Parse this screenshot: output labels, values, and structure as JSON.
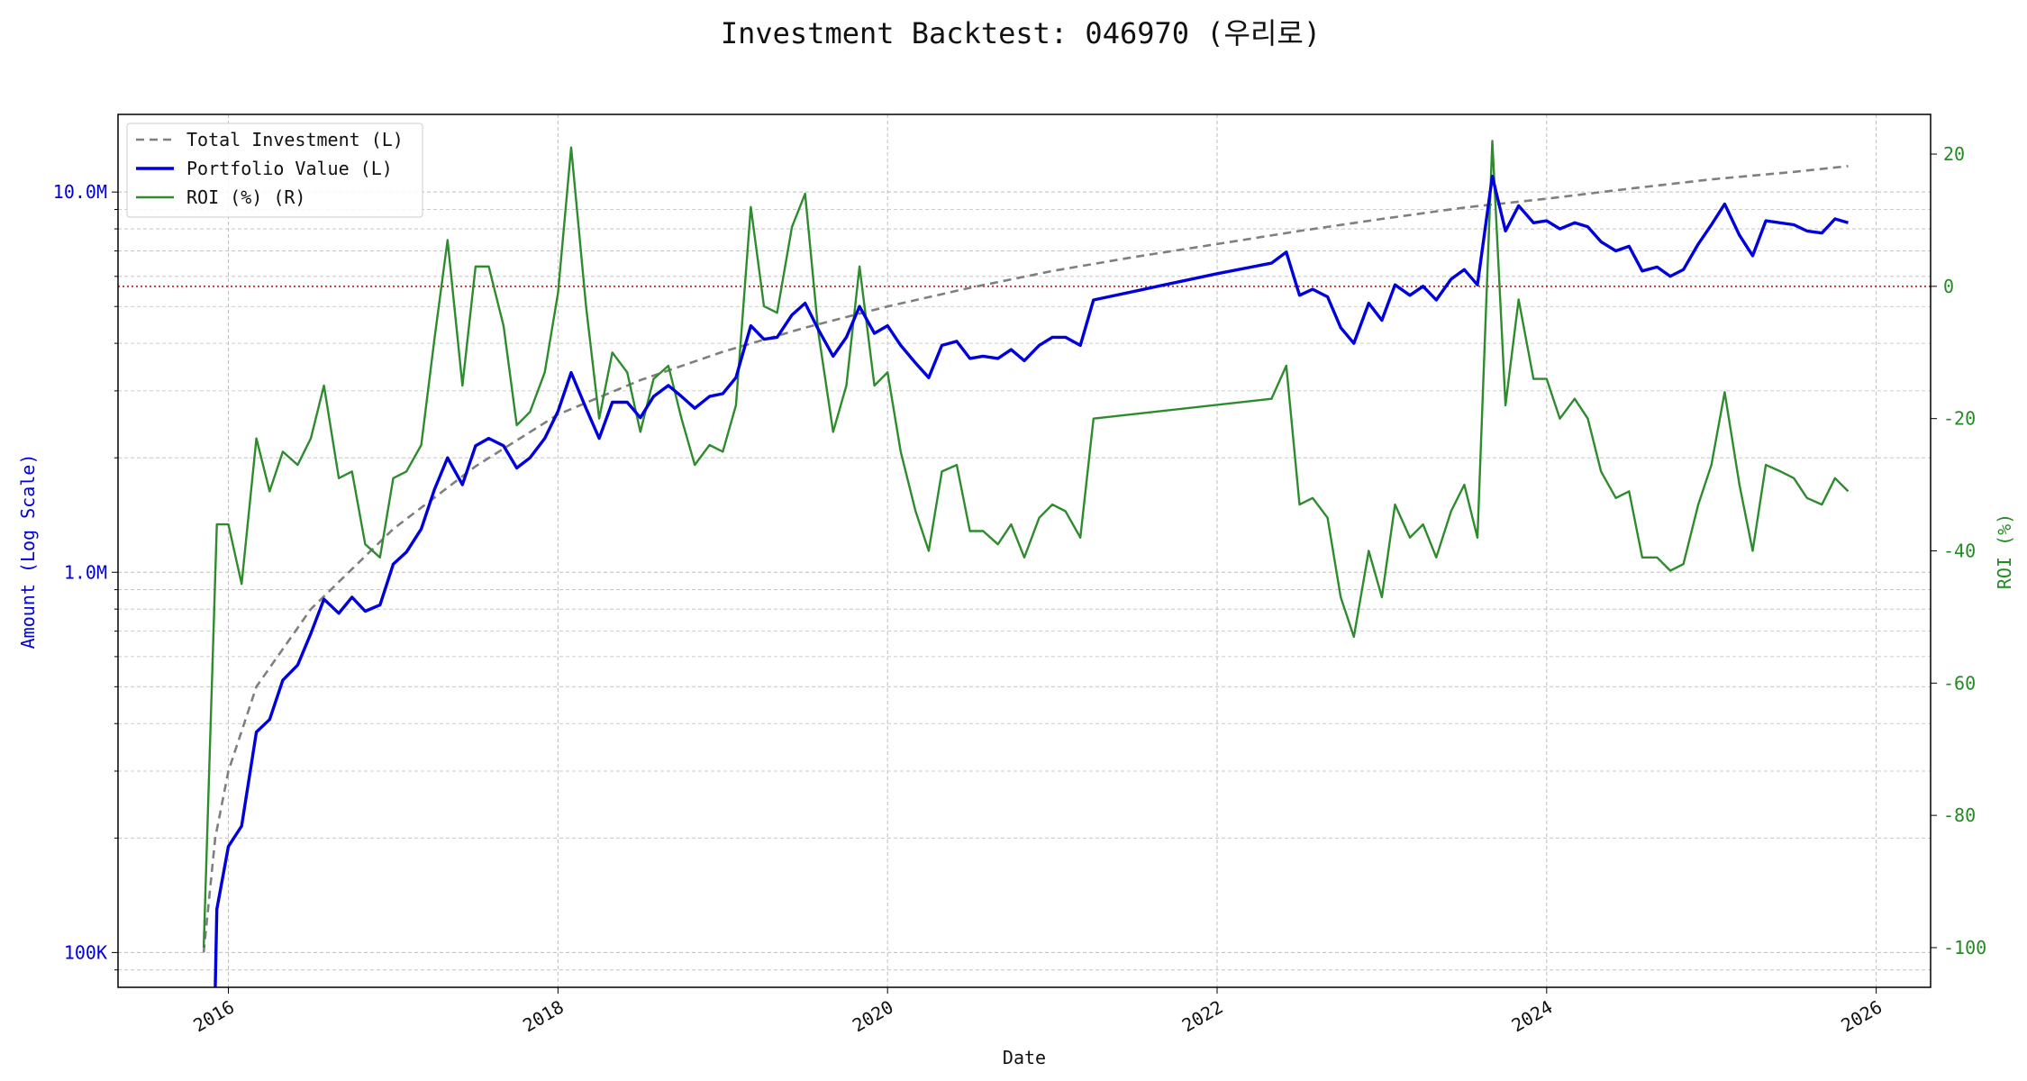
{
  "chart_data": {
    "type": "line",
    "title": "Investment Backtest: 046970 (우리로)",
    "xlabel": "Date",
    "ylabel_left": "Amount (Log Scale)",
    "ylabel_right": "ROI (%)",
    "x_ticks": [
      "2016",
      "2018",
      "2020",
      "2022",
      "2024",
      "2026"
    ],
    "x_range": [
      2015.33,
      2026.33
    ],
    "y_left_scale": "log",
    "y_left_range": [
      81000,
      16000000
    ],
    "y_left_ticks": [
      {
        "value": 100000,
        "label": "100K"
      },
      {
        "value": 1000000,
        "label": "1.0M"
      },
      {
        "value": 10000000,
        "label": "10.0M"
      }
    ],
    "y_right_range": [
      -106,
      26
    ],
    "y_right_ticks": [
      20,
      0,
      -20,
      -40,
      -60,
      -80,
      -100
    ],
    "roi_zero_line": 0,
    "grid": true,
    "legend_position": "top-left",
    "colors": {
      "total_investment": "#7f7f7f",
      "portfolio_value": "#0000dd",
      "roi": "#2e8b2e",
      "zero_line": "#cc0000",
      "left_axis": "#0000dd",
      "right_axis": "#228B22"
    },
    "series": [
      {
        "name": "Total Investment (L)",
        "axis": "left",
        "style": "dashed",
        "points": [
          [
            2015.85,
            100000
          ],
          [
            2015.92,
            200000
          ],
          [
            2016.0,
            300000
          ],
          [
            2016.17,
            500000
          ],
          [
            2016.5,
            800000
          ],
          [
            2017.0,
            1300000
          ],
          [
            2017.5,
            1900000
          ],
          [
            2018.0,
            2600000
          ],
          [
            2018.5,
            3200000
          ],
          [
            2019.0,
            3800000
          ],
          [
            2019.5,
            4400000
          ],
          [
            2020.0,
            5000000
          ],
          [
            2020.5,
            5600000
          ],
          [
            2021.0,
            6200000
          ],
          [
            2021.5,
            6750000
          ],
          [
            2022.0,
            7300000
          ],
          [
            2022.5,
            7900000
          ],
          [
            2023.0,
            8500000
          ],
          [
            2023.5,
            9100000
          ],
          [
            2024.0,
            9600000
          ],
          [
            2024.5,
            10200000
          ],
          [
            2025.0,
            10800000
          ],
          [
            2025.5,
            11300000
          ],
          [
            2025.83,
            11700000
          ]
        ]
      },
      {
        "name": "Portfolio Value (L)",
        "axis": "left",
        "style": "solid",
        "points": [
          [
            2015.92,
            80000
          ],
          [
            2015.93,
            130000
          ],
          [
            2016.0,
            190000
          ],
          [
            2016.08,
            215000
          ],
          [
            2016.17,
            380000
          ],
          [
            2016.25,
            410000
          ],
          [
            2016.33,
            520000
          ],
          [
            2016.42,
            570000
          ],
          [
            2016.5,
            690000
          ],
          [
            2016.58,
            850000
          ],
          [
            2016.67,
            780000
          ],
          [
            2016.75,
            860000
          ],
          [
            2016.83,
            790000
          ],
          [
            2016.92,
            820000
          ],
          [
            2017.0,
            1050000
          ],
          [
            2017.08,
            1130000
          ],
          [
            2017.17,
            1300000
          ],
          [
            2017.25,
            1650000
          ],
          [
            2017.33,
            2000000
          ],
          [
            2017.42,
            1700000
          ],
          [
            2017.5,
            2150000
          ],
          [
            2017.58,
            2250000
          ],
          [
            2017.67,
            2150000
          ],
          [
            2017.75,
            1880000
          ],
          [
            2017.83,
            2000000
          ],
          [
            2017.92,
            2250000
          ],
          [
            2018.0,
            2650000
          ],
          [
            2018.08,
            3350000
          ],
          [
            2018.17,
            2700000
          ],
          [
            2018.25,
            2250000
          ],
          [
            2018.33,
            2800000
          ],
          [
            2018.42,
            2800000
          ],
          [
            2018.5,
            2550000
          ],
          [
            2018.58,
            2900000
          ],
          [
            2018.67,
            3100000
          ],
          [
            2018.75,
            2900000
          ],
          [
            2018.83,
            2700000
          ],
          [
            2018.92,
            2900000
          ],
          [
            2019.0,
            2950000
          ],
          [
            2019.08,
            3250000
          ],
          [
            2019.17,
            4450000
          ],
          [
            2019.25,
            4100000
          ],
          [
            2019.33,
            4150000
          ],
          [
            2019.42,
            4750000
          ],
          [
            2019.5,
            5100000
          ],
          [
            2019.58,
            4350000
          ],
          [
            2019.67,
            3700000
          ],
          [
            2019.75,
            4150000
          ],
          [
            2019.83,
            5000000
          ],
          [
            2019.92,
            4250000
          ],
          [
            2020.0,
            4450000
          ],
          [
            2020.08,
            3950000
          ],
          [
            2020.17,
            3550000
          ],
          [
            2020.25,
            3250000
          ],
          [
            2020.33,
            3950000
          ],
          [
            2020.42,
            4050000
          ],
          [
            2020.5,
            3650000
          ],
          [
            2020.58,
            3700000
          ],
          [
            2020.67,
            3650000
          ],
          [
            2020.75,
            3850000
          ],
          [
            2020.83,
            3600000
          ],
          [
            2020.92,
            3950000
          ],
          [
            2021.0,
            4150000
          ],
          [
            2021.08,
            4150000
          ],
          [
            2021.17,
            3950000
          ],
          [
            2021.25,
            5200000
          ],
          [
            2022.0,
            6100000
          ],
          [
            2022.33,
            6500000
          ],
          [
            2022.42,
            6950000
          ],
          [
            2022.5,
            5350000
          ],
          [
            2022.58,
            5550000
          ],
          [
            2022.67,
            5300000
          ],
          [
            2022.75,
            4400000
          ],
          [
            2022.83,
            4000000
          ],
          [
            2022.92,
            5100000
          ],
          [
            2023.0,
            4600000
          ],
          [
            2023.08,
            5700000
          ],
          [
            2023.17,
            5350000
          ],
          [
            2023.25,
            5650000
          ],
          [
            2023.33,
            5200000
          ],
          [
            2023.42,
            5900000
          ],
          [
            2023.5,
            6250000
          ],
          [
            2023.58,
            5700000
          ],
          [
            2023.67,
            11000000
          ],
          [
            2023.75,
            7900000
          ],
          [
            2023.83,
            9200000
          ],
          [
            2023.92,
            8300000
          ],
          [
            2024.0,
            8400000
          ],
          [
            2024.08,
            8000000
          ],
          [
            2024.17,
            8300000
          ],
          [
            2024.25,
            8100000
          ],
          [
            2024.33,
            7400000
          ],
          [
            2024.42,
            7000000
          ],
          [
            2024.5,
            7200000
          ],
          [
            2024.58,
            6200000
          ],
          [
            2024.67,
            6350000
          ],
          [
            2024.75,
            6000000
          ],
          [
            2024.83,
            6250000
          ],
          [
            2024.92,
            7300000
          ],
          [
            2025.0,
            8200000
          ],
          [
            2025.08,
            9300000
          ],
          [
            2025.17,
            7700000
          ],
          [
            2025.25,
            6800000
          ],
          [
            2025.33,
            8400000
          ],
          [
            2025.5,
            8200000
          ],
          [
            2025.58,
            7900000
          ],
          [
            2025.67,
            7800000
          ],
          [
            2025.75,
            8500000
          ],
          [
            2025.83,
            8300000
          ]
        ]
      },
      {
        "name": "ROI (%) (R)",
        "axis": "right",
        "style": "solid",
        "points": [
          [
            2015.85,
            -100
          ],
          [
            2015.93,
            -36
          ],
          [
            2016.0,
            -36
          ],
          [
            2016.08,
            -45
          ],
          [
            2016.17,
            -23
          ],
          [
            2016.25,
            -31
          ],
          [
            2016.33,
            -25
          ],
          [
            2016.42,
            -27
          ],
          [
            2016.5,
            -23
          ],
          [
            2016.58,
            -15
          ],
          [
            2016.67,
            -29
          ],
          [
            2016.75,
            -28
          ],
          [
            2016.83,
            -39
          ],
          [
            2016.92,
            -41
          ],
          [
            2017.0,
            -29
          ],
          [
            2017.08,
            -28
          ],
          [
            2017.17,
            -24
          ],
          [
            2017.25,
            -8
          ],
          [
            2017.33,
            7
          ],
          [
            2017.42,
            -15
          ],
          [
            2017.5,
            3
          ],
          [
            2017.58,
            3
          ],
          [
            2017.67,
            -6
          ],
          [
            2017.75,
            -21
          ],
          [
            2017.83,
            -19
          ],
          [
            2017.92,
            -13
          ],
          [
            2018.0,
            -1
          ],
          [
            2018.08,
            21
          ],
          [
            2018.17,
            -3
          ],
          [
            2018.25,
            -20
          ],
          [
            2018.33,
            -10
          ],
          [
            2018.42,
            -13
          ],
          [
            2018.5,
            -22
          ],
          [
            2018.58,
            -14
          ],
          [
            2018.67,
            -12
          ],
          [
            2018.75,
            -20
          ],
          [
            2018.83,
            -27
          ],
          [
            2018.92,
            -24
          ],
          [
            2019.0,
            -25
          ],
          [
            2019.08,
            -18
          ],
          [
            2019.17,
            12
          ],
          [
            2019.25,
            -3
          ],
          [
            2019.33,
            -4
          ],
          [
            2019.42,
            9
          ],
          [
            2019.5,
            14
          ],
          [
            2019.58,
            -7
          ],
          [
            2019.67,
            -22
          ],
          [
            2019.75,
            -15
          ],
          [
            2019.83,
            3
          ],
          [
            2019.92,
            -15
          ],
          [
            2020.0,
            -13
          ],
          [
            2020.08,
            -25
          ],
          [
            2020.17,
            -34
          ],
          [
            2020.25,
            -40
          ],
          [
            2020.33,
            -28
          ],
          [
            2020.42,
            -27
          ],
          [
            2020.5,
            -37
          ],
          [
            2020.58,
            -37
          ],
          [
            2020.67,
            -39
          ],
          [
            2020.75,
            -36
          ],
          [
            2020.83,
            -41
          ],
          [
            2020.92,
            -35
          ],
          [
            2021.0,
            -33
          ],
          [
            2021.08,
            -34
          ],
          [
            2021.17,
            -38
          ],
          [
            2021.25,
            -20
          ],
          [
            2022.33,
            -17
          ],
          [
            2022.42,
            -12
          ],
          [
            2022.5,
            -33
          ],
          [
            2022.58,
            -32
          ],
          [
            2022.67,
            -35
          ],
          [
            2022.75,
            -47
          ],
          [
            2022.83,
            -53
          ],
          [
            2022.92,
            -40
          ],
          [
            2023.0,
            -47
          ],
          [
            2023.08,
            -33
          ],
          [
            2023.17,
            -38
          ],
          [
            2023.25,
            -36
          ],
          [
            2023.33,
            -41
          ],
          [
            2023.42,
            -34
          ],
          [
            2023.5,
            -30
          ],
          [
            2023.58,
            -38
          ],
          [
            2023.67,
            22
          ],
          [
            2023.75,
            -18
          ],
          [
            2023.83,
            -2
          ],
          [
            2023.92,
            -14
          ],
          [
            2024.0,
            -14
          ],
          [
            2024.08,
            -20
          ],
          [
            2024.17,
            -17
          ],
          [
            2024.25,
            -20
          ],
          [
            2024.33,
            -28
          ],
          [
            2024.42,
            -32
          ],
          [
            2024.5,
            -31
          ],
          [
            2024.58,
            -41
          ],
          [
            2024.67,
            -41
          ],
          [
            2024.75,
            -43
          ],
          [
            2024.83,
            -42
          ],
          [
            2024.92,
            -33
          ],
          [
            2025.0,
            -27
          ],
          [
            2025.08,
            -16
          ],
          [
            2025.17,
            -30
          ],
          [
            2025.25,
            -40
          ],
          [
            2025.33,
            -27
          ],
          [
            2025.42,
            -28
          ],
          [
            2025.5,
            -29
          ],
          [
            2025.58,
            -32
          ],
          [
            2025.67,
            -33
          ],
          [
            2025.75,
            -29
          ],
          [
            2025.83,
            -31
          ]
        ]
      }
    ]
  }
}
